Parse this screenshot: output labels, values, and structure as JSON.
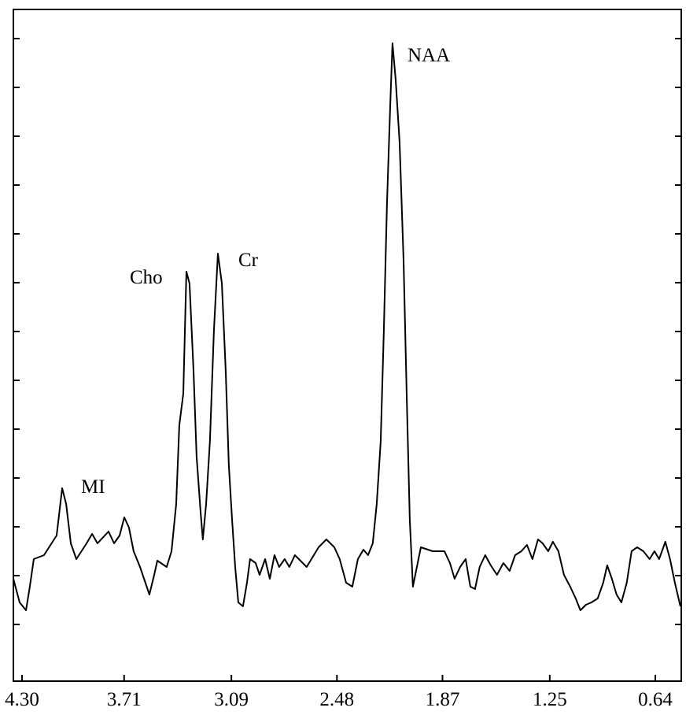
{
  "chart_data": {
    "type": "line",
    "annotations": [
      "NAA",
      "Cho",
      "Cr",
      "MI"
    ],
    "xlim": [
      4.35,
      0.49
    ],
    "ylim": [
      0,
      853
    ],
    "xticks": [
      {
        "value": 4.3,
        "label": "4.30"
      },
      3.71,
      3.09,
      2.48,
      1.87,
      1.25,
      0.64
    ],
    "series": [
      {
        "color": "#000000",
        "x": [
          4.35,
          4.314,
          4.277,
          4.255,
          4.232,
          4.173,
          4.1,
          4.068,
          4.045,
          4.018,
          3.986,
          3.927,
          3.895,
          3.864,
          3.8,
          3.768,
          3.736,
          3.709,
          3.682,
          3.655,
          3.618,
          3.564,
          3.536,
          3.518,
          3.464,
          3.436,
          3.409,
          3.391,
          3.368,
          3.35,
          3.332,
          3.309,
          3.291,
          3.268,
          3.255,
          3.236,
          3.214,
          3.191,
          3.168,
          3.145,
          3.123,
          3.105,
          3.086,
          3.068,
          3.05,
          3.023,
          3.0,
          2.982,
          2.95,
          2.927,
          2.895,
          2.868,
          2.841,
          2.814,
          2.782,
          2.755,
          2.723,
          2.655,
          2.586,
          2.541,
          2.495,
          2.464,
          2.427,
          2.391,
          2.359,
          2.327,
          2.3,
          2.273,
          2.25,
          2.227,
          2.209,
          2.191,
          2.173,
          2.159,
          2.141,
          2.118,
          2.095,
          2.077,
          2.059,
          2.041,
          2.018,
          1.995,
          1.927,
          1.859,
          1.827,
          1.8,
          1.768,
          1.736,
          1.709,
          1.682,
          1.655,
          1.623,
          1.591,
          1.555,
          1.518,
          1.482,
          1.45,
          1.414,
          1.382,
          1.35,
          1.318,
          1.291,
          1.259,
          1.232,
          1.2,
          1.168,
          1.132,
          1.1,
          1.073,
          1.041,
          1.009,
          0.973,
          0.941,
          0.918,
          0.891,
          0.864,
          0.836,
          0.805,
          0.777,
          0.745,
          0.709,
          0.673,
          0.645,
          0.618,
          0.582,
          0.555,
          0.527,
          0.495
        ],
        "values": [
          130,
          100,
          90,
          120,
          155,
          160,
          185,
          245,
          225,
          175,
          155,
          175,
          187,
          175,
          190,
          175,
          185,
          208,
          195,
          165,
          145,
          110,
          135,
          153,
          145,
          165,
          225,
          325,
          365,
          520,
          505,
          395,
          285,
          215,
          180,
          225,
          305,
          445,
          543,
          505,
          395,
          275,
          205,
          145,
          100,
          95,
          125,
          155,
          150,
          135,
          155,
          130,
          160,
          145,
          155,
          145,
          160,
          145,
          170,
          180,
          170,
          155,
          125,
          120,
          155,
          167,
          160,
          175,
          225,
          305,
          445,
          605,
          725,
          810,
          765,
          685,
          535,
          365,
          205,
          120,
          145,
          170,
          165,
          165,
          150,
          130,
          145,
          155,
          120,
          117,
          145,
          160,
          147,
          135,
          150,
          140,
          160,
          165,
          173,
          155,
          180,
          175,
          165,
          177,
          165,
          135,
          120,
          105,
          90,
          97,
          100,
          105,
          125,
          147,
          130,
          110,
          100,
          125,
          165,
          170,
          165,
          155,
          165,
          155,
          177,
          155,
          125,
          95
        ]
      }
    ]
  }
}
